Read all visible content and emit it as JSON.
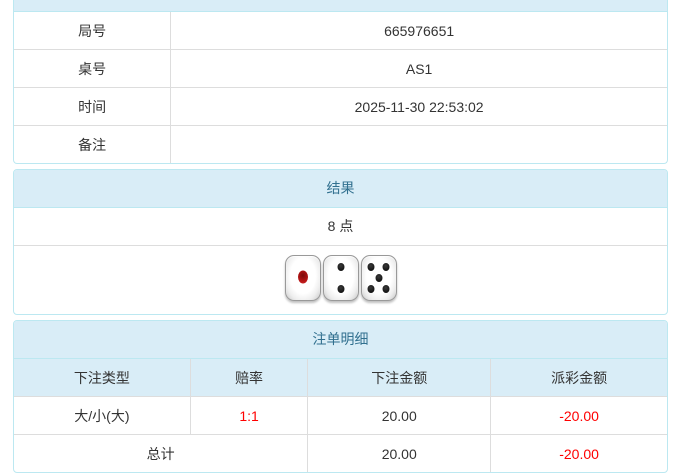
{
  "colors": {
    "accent_bg": "#d9edf7",
    "accent_border": "#bce8f1",
    "accent_text": "#31708f",
    "grid_border": "#dddddd",
    "body_text": "#333333",
    "negative_text": "#ff0000"
  },
  "game_info": {
    "rows": [
      {
        "label": "局号",
        "value": "665976651"
      },
      {
        "label": "桌号",
        "value": "AS1"
      },
      {
        "label": "时间",
        "value": "2025-11-30 22:53:02"
      },
      {
        "label": "备注",
        "value": ""
      }
    ]
  },
  "result": {
    "title": "结果",
    "points": "8 点",
    "dice": [
      1,
      2,
      5
    ]
  },
  "bet_details": {
    "title": "注单明细",
    "headers": [
      "下注类型",
      "赔率",
      "下注金额",
      "派彩金额"
    ],
    "rows": [
      {
        "bet_type": "大/小(大)",
        "odds": "1:1",
        "bet_amount": "20.00",
        "payout_amount": "-20.00"
      }
    ],
    "total": {
      "label": "总计",
      "bet_amount": "20.00",
      "payout_amount": "-20.00"
    }
  }
}
